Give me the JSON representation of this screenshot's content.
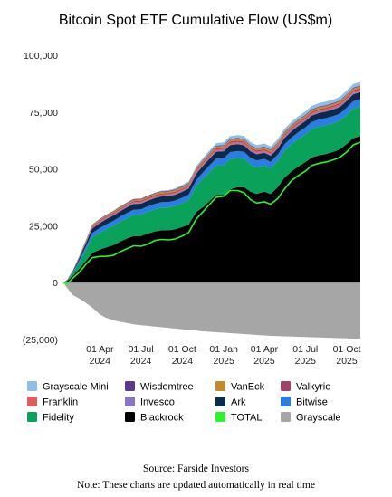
{
  "colors": {
    "Grayscale Mini": "#8fbfe6",
    "Wisdomtree": "#5b3a8e",
    "VanEck": "#c28a2e",
    "Valkyrie": "#a2416b",
    "Franklin": "#e05e5e",
    "Invesco": "#8a76c5",
    "Ark": "#0d2a4d",
    "Bitwise": "#2a7de1",
    "Fidelity": "#0aa15a",
    "Blackrock": "#000000",
    "TOTAL": "#2ff22f",
    "Grayscale": "#a6a6a6"
  },
  "chart_data": {
    "type": "area",
    "title": "Bitcoin Spot ETF Cumulative Flow (US$m)",
    "xlabel": "",
    "ylabel": "",
    "ylim": [
      -25000,
      100000
    ],
    "y_ticks": [
      100000,
      75000,
      50000,
      25000,
      0,
      -25000
    ],
    "y_tick_labels": [
      "100,000",
      "75,000",
      "50,000",
      "25,000",
      "0",
      "(25,000)"
    ],
    "x_ticks": [
      {
        "date": "2024-04-01",
        "label": [
          "01 Apr",
          "2024"
        ]
      },
      {
        "date": "2024-07-01",
        "label": [
          "01 Jul",
          "2024"
        ]
      },
      {
        "date": "2024-10-01",
        "label": [
          "01 Oct",
          "2024"
        ]
      },
      {
        "date": "2025-01-01",
        "label": [
          "01 Jan",
          "2025"
        ]
      },
      {
        "date": "2025-04-01",
        "label": [
          "01 Apr",
          "2025"
        ]
      },
      {
        "date": "2025-07-01",
        "label": [
          "01 Jul",
          "2025"
        ]
      },
      {
        "date": "2025-10-01",
        "label": [
          "01 Oct",
          "2025"
        ]
      }
    ],
    "x": [
      "2024-01-11",
      "2024-01-20",
      "2024-02-01",
      "2024-02-15",
      "2024-03-01",
      "2024-03-15",
      "2024-04-01",
      "2024-04-15",
      "2024-05-01",
      "2024-05-15",
      "2024-06-01",
      "2024-06-15",
      "2024-07-01",
      "2024-07-15",
      "2024-08-01",
      "2024-08-15",
      "2024-09-01",
      "2024-09-15",
      "2024-10-01",
      "2024-10-15",
      "2024-11-01",
      "2024-11-15",
      "2024-12-01",
      "2024-12-15",
      "2025-01-01",
      "2025-01-15",
      "2025-02-01",
      "2025-02-15",
      "2025-03-01",
      "2025-03-15",
      "2025-04-01",
      "2025-04-15",
      "2025-05-01",
      "2025-05-15",
      "2025-06-01",
      "2025-06-15",
      "2025-07-01",
      "2025-07-15",
      "2025-08-01",
      "2025-08-15",
      "2025-09-01",
      "2025-09-15",
      "2025-10-01",
      "2025-10-15",
      "2025-10-31"
    ],
    "stack_order": [
      "Blackrock",
      "Fidelity",
      "Bitwise",
      "Ark",
      "Invesco",
      "Franklin",
      "Valkyrie",
      "VanEck",
      "Wisdomtree",
      "Grayscale Mini"
    ],
    "series": [
      {
        "name": "Blackrock",
        "values": [
          0,
          800,
          3000,
          6000,
          9500,
          13000,
          14500,
          15500,
          16500,
          18000,
          19500,
          20500,
          20500,
          21500,
          22500,
          23000,
          23000,
          23500,
          24500,
          25500,
          31000,
          33000,
          36000,
          38500,
          38500,
          41000,
          42000,
          42000,
          40000,
          39000,
          40000,
          39000,
          42000,
          46000,
          49000,
          51000,
          53000,
          55000,
          56000,
          56500,
          57500,
          58500,
          61000,
          63500,
          64500
        ]
      },
      {
        "name": "Fidelity",
        "values": [
          0,
          300,
          1200,
          2800,
          5000,
          7000,
          7500,
          8000,
          8500,
          8700,
          9000,
          9300,
          9400,
          9600,
          9800,
          10000,
          10100,
          10200,
          10500,
          10800,
          11500,
          12500,
          12800,
          13000,
          13200,
          13300,
          12800,
          12500,
          12000,
          11800,
          11500,
          11300,
          11500,
          11800,
          12000,
          12100,
          12200,
          12500,
          12700,
          12700,
          12600,
          12600,
          12800,
          13000,
          13000
        ]
      },
      {
        "name": "Bitwise",
        "values": [
          0,
          100,
          400,
          900,
          1400,
          1800,
          2000,
          2100,
          2150,
          2200,
          2250,
          2300,
          2300,
          2300,
          2320,
          2340,
          2350,
          2350,
          2360,
          2380,
          2600,
          2800,
          2900,
          3000,
          3050,
          3100,
          3050,
          3000,
          2950,
          2900,
          2900,
          2850,
          2850,
          2900,
          2950,
          3000,
          3050,
          3100,
          3100,
          3120,
          3150,
          3150,
          3200,
          3250,
          3250
        ]
      },
      {
        "name": "Ark",
        "values": [
          0,
          100,
          400,
          1000,
          1500,
          2000,
          2200,
          2300,
          2350,
          2400,
          2450,
          2500,
          2500,
          2500,
          2550,
          2550,
          2600,
          2600,
          2650,
          2700,
          2800,
          2900,
          2950,
          3000,
          3000,
          3050,
          3000,
          2900,
          2800,
          2750,
          2700,
          2650,
          2650,
          2700,
          2750,
          2750,
          2800,
          2800,
          2850,
          2850,
          2900,
          2900,
          2950,
          3000,
          3000
        ]
      },
      {
        "name": "Invesco",
        "values": [
          0,
          20,
          80,
          150,
          220,
          280,
          300,
          310,
          320,
          330,
          340,
          350,
          350,
          350,
          360,
          360,
          370,
          370,
          380,
          380,
          400,
          420,
          440,
          450,
          450,
          460,
          460,
          455,
          450,
          450,
          445,
          440,
          440,
          445,
          450,
          450,
          455,
          460,
          460,
          465,
          470,
          470,
          475,
          480,
          480
        ]
      },
      {
        "name": "Franklin",
        "values": [
          0,
          30,
          100,
          200,
          300,
          350,
          380,
          400,
          420,
          440,
          450,
          460,
          470,
          480,
          490,
          500,
          510,
          520,
          530,
          540,
          560,
          580,
          600,
          610,
          620,
          630,
          640,
          640,
          640,
          640,
          640,
          640,
          645,
          650,
          655,
          660,
          665,
          670,
          675,
          680,
          685,
          690,
          695,
          700,
          700
        ]
      },
      {
        "name": "Valkyrie",
        "values": [
          0,
          30,
          100,
          200,
          300,
          380,
          400,
          410,
          420,
          430,
          440,
          450,
          455,
          460,
          465,
          470,
          475,
          480,
          485,
          490,
          500,
          510,
          520,
          530,
          535,
          540,
          540,
          535,
          530,
          525,
          520,
          515,
          515,
          520,
          525,
          530,
          535,
          540,
          545,
          550,
          555,
          560,
          565,
          570,
          570
        ]
      },
      {
        "name": "VanEck",
        "values": [
          0,
          40,
          130,
          260,
          400,
          500,
          520,
          540,
          560,
          580,
          600,
          620,
          630,
          640,
          650,
          660,
          670,
          680,
          690,
          700,
          720,
          740,
          760,
          780,
          790,
          800,
          800,
          795,
          790,
          785,
          780,
          775,
          775,
          780,
          785,
          790,
          795,
          800,
          805,
          810,
          815,
          820,
          825,
          830,
          830
        ]
      },
      {
        "name": "Wisdomtree",
        "values": [
          0,
          20,
          60,
          120,
          180,
          220,
          240,
          250,
          260,
          270,
          280,
          290,
          295,
          300,
          305,
          310,
          315,
          320,
          325,
          330,
          340,
          350,
          355,
          360,
          362,
          365,
          365,
          362,
          360,
          358,
          356,
          354,
          354,
          356,
          358,
          360,
          362,
          364,
          366,
          368,
          370,
          372,
          374,
          376,
          376
        ]
      },
      {
        "name": "Grayscale Mini",
        "values": [
          0,
          0,
          0,
          0,
          0,
          0,
          0,
          0,
          0,
          0,
          0,
          0,
          0,
          0,
          100,
          250,
          350,
          450,
          550,
          650,
          750,
          850,
          950,
          1050,
          1150,
          1200,
          1250,
          1280,
          1300,
          1320,
          1340,
          1360,
          1380,
          1400,
          1420,
          1440,
          1460,
          1480,
          1500,
          1520,
          1540,
          1560,
          1580,
          1600,
          1610
        ]
      },
      {
        "name": "Grayscale",
        "values": [
          0,
          -2500,
          -5500,
          -7000,
          -9000,
          -11000,
          -14000,
          -15500,
          -16500,
          -17200,
          -17800,
          -18300,
          -18700,
          -19000,
          -19300,
          -19600,
          -19900,
          -20200,
          -20500,
          -20800,
          -21100,
          -21400,
          -21600,
          -21800,
          -22000,
          -22200,
          -22400,
          -22600,
          -22800,
          -23000,
          -23200,
          -23400,
          -23500,
          -23600,
          -23700,
          -23800,
          -23900,
          -24000,
          -24100,
          -24200,
          -24300,
          -24400,
          -24500,
          -24600,
          -24700
        ]
      },
      {
        "name": "TOTAL",
        "values": [
          0,
          -500,
          2000,
          4500,
          8000,
          11000,
          11500,
          11600,
          12000,
          13500,
          15000,
          16200,
          16000,
          16800,
          18500,
          19000,
          18800,
          19200,
          20500,
          22000,
          28000,
          31000,
          34500,
          37500,
          38000,
          40500,
          40500,
          39500,
          36500,
          35000,
          35500,
          34500,
          37000,
          41000,
          45000,
          47000,
          49000,
          51500,
          52500,
          53000,
          54000,
          55000,
          57500,
          60500,
          61800
        ]
      }
    ],
    "legend": [
      "Grayscale Mini",
      "Wisdomtree",
      "VanEck",
      "Valkyrie",
      "Franklin",
      "Invesco",
      "Ark",
      "Bitwise",
      "Fidelity",
      "Blackrock",
      "TOTAL",
      "Grayscale"
    ],
    "legend_placement": "bottom"
  },
  "footer": {
    "source": "Source: Farside Investors",
    "note": "Note: These charts are updated automatically in real time"
  }
}
